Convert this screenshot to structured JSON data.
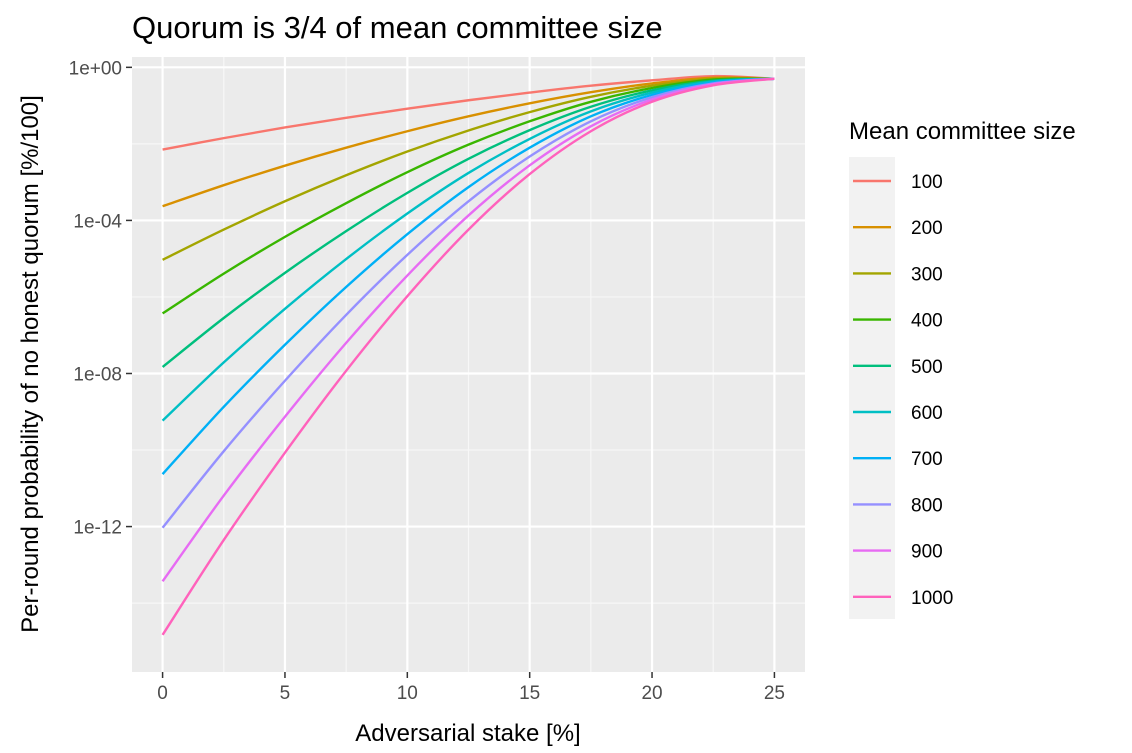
{
  "chart_data": {
    "type": "line",
    "title": "Quorum is 3/4 of mean committee size",
    "xlabel": "Adversarial stake [%]",
    "ylabel": "Per-round probability of no honest quorum [%/100]",
    "xlim": [
      -1.25,
      26.25
    ],
    "ylim_log10": [
      -15.8,
      0.27
    ],
    "y_scale": "log10",
    "grid": true,
    "panel_background": "#ebebeb",
    "x_ticks": [
      0,
      5,
      10,
      15,
      20,
      25
    ],
    "x_tick_labels": [
      "0",
      "5",
      "10",
      "15",
      "20",
      "25"
    ],
    "y_ticks_log10": [
      0,
      -4,
      -8,
      -12
    ],
    "y_tick_labels": [
      "1e+00",
      "1e-04",
      "1e-08",
      "1e-12"
    ],
    "legend": {
      "title": "Mean committee size",
      "position": "right"
    },
    "series": [
      {
        "name": "100",
        "color": "#F8766D",
        "x": [
          0,
          2.5,
          5,
          7.5,
          10,
          12.5,
          15,
          17.5,
          20,
          22.5,
          25
        ],
        "log10_y": [
          -2.15,
          -1.85,
          -1.57,
          -1.32,
          -1.08,
          -0.86,
          -0.66,
          -0.48,
          -0.34,
          -0.23,
          -0.3
        ]
      },
      {
        "name": "200",
        "color": "#D89000",
        "x": [
          0,
          2.5,
          5,
          7.5,
          10,
          12.5,
          15,
          17.5,
          20,
          22.5,
          25
        ],
        "log10_y": [
          -3.63,
          -3.08,
          -2.57,
          -2.1,
          -1.67,
          -1.28,
          -0.94,
          -0.65,
          -0.42,
          -0.27,
          -0.3
        ]
      },
      {
        "name": "300",
        "color": "#A3A500",
        "x": [
          0,
          2.5,
          5,
          7.5,
          10,
          12.5,
          15,
          17.5,
          20,
          22.5,
          25
        ],
        "log10_y": [
          -5.03,
          -4.24,
          -3.5,
          -2.82,
          -2.2,
          -1.65,
          -1.17,
          -0.77,
          -0.48,
          -0.3,
          -0.3
        ]
      },
      {
        "name": "400",
        "color": "#39B600",
        "x": [
          0,
          2.5,
          5,
          7.5,
          10,
          12.5,
          15,
          17.5,
          20,
          22.5,
          25
        ],
        "log10_y": [
          -6.43,
          -5.39,
          -4.43,
          -3.55,
          -2.74,
          -2.02,
          -1.41,
          -0.9,
          -0.54,
          -0.32,
          -0.3
        ]
      },
      {
        "name": "500",
        "color": "#00BF7D",
        "x": [
          0,
          2.5,
          5,
          7.5,
          10,
          12.5,
          15,
          17.5,
          20,
          22.5,
          25
        ],
        "log10_y": [
          -7.83,
          -6.55,
          -5.37,
          -4.28,
          -3.28,
          -2.39,
          -1.64,
          -1.03,
          -0.6,
          -0.35,
          -0.3
        ]
      },
      {
        "name": "600",
        "color": "#00BFC4",
        "x": [
          0,
          2.5,
          5,
          7.5,
          10,
          12.5,
          15,
          17.5,
          20,
          22.5,
          25
        ],
        "log10_y": [
          -9.23,
          -7.71,
          -6.31,
          -5.01,
          -3.82,
          -2.76,
          -1.87,
          -1.15,
          -0.66,
          -0.37,
          -0.3
        ]
      },
      {
        "name": "700",
        "color": "#00B0F6",
        "x": [
          0,
          2.5,
          5,
          7.5,
          10,
          12.5,
          15,
          17.5,
          20,
          22.5,
          25
        ],
        "log10_y": [
          -10.63,
          -8.87,
          -7.25,
          -5.74,
          -4.36,
          -3.13,
          -2.1,
          -1.28,
          -0.72,
          -0.39,
          -0.3
        ]
      },
      {
        "name": "800",
        "color": "#9590FF",
        "x": [
          0,
          2.5,
          5,
          7.5,
          10,
          12.5,
          15,
          17.5,
          20,
          22.5,
          25
        ],
        "log10_y": [
          -12.03,
          -10.03,
          -8.19,
          -6.47,
          -4.9,
          -3.5,
          -2.33,
          -1.41,
          -0.78,
          -0.42,
          -0.3
        ]
      },
      {
        "name": "900",
        "color": "#E76BF3",
        "x": [
          0,
          2.5,
          5,
          7.5,
          10,
          12.5,
          15,
          17.5,
          20,
          22.5,
          25
        ],
        "log10_y": [
          -13.43,
          -11.19,
          -9.13,
          -7.2,
          -5.44,
          -3.87,
          -2.56,
          -1.54,
          -0.84,
          -0.44,
          -0.3
        ]
      },
      {
        "name": "1000",
        "color": "#FF62BC",
        "x": [
          0,
          2.5,
          5,
          7.5,
          10,
          12.5,
          15,
          17.5,
          20,
          22.5,
          25
        ],
        "log10_y": [
          -14.83,
          -12.35,
          -10.07,
          -7.93,
          -5.98,
          -4.24,
          -2.79,
          -1.67,
          -0.9,
          -0.47,
          -0.3
        ]
      }
    ]
  }
}
